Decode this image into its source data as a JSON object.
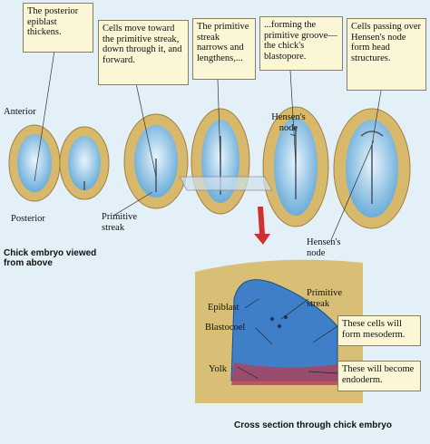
{
  "callouts": [
    "The posterior epiblast thickens.",
    "Cells move toward the primitive streak, down through it, and forward.",
    "The primitive streak narrows and lengthens,...",
    "...forming the primitive groove—the chick's blastopore.",
    "Cells passing over Hensen's node form head structures."
  ],
  "top_view": {
    "anterior": "Anterior",
    "posterior": "Posterior",
    "primitive_streak": "Primitive streak",
    "hensens_node_1": "Hensen's node",
    "hensens_node_2": "Hensen's node",
    "caption": "Chick embryo viewed from above"
  },
  "cross_section": {
    "epiblast": "Epiblast",
    "blastocoel": "Blastocoel",
    "yolk": "Yolk",
    "primitive_streak": "Primitive streak",
    "mesoderm_note": "These cells will form mesoderm.",
    "endoderm_note": "These will become endoderm.",
    "caption": "Cross section through chick embryo"
  }
}
